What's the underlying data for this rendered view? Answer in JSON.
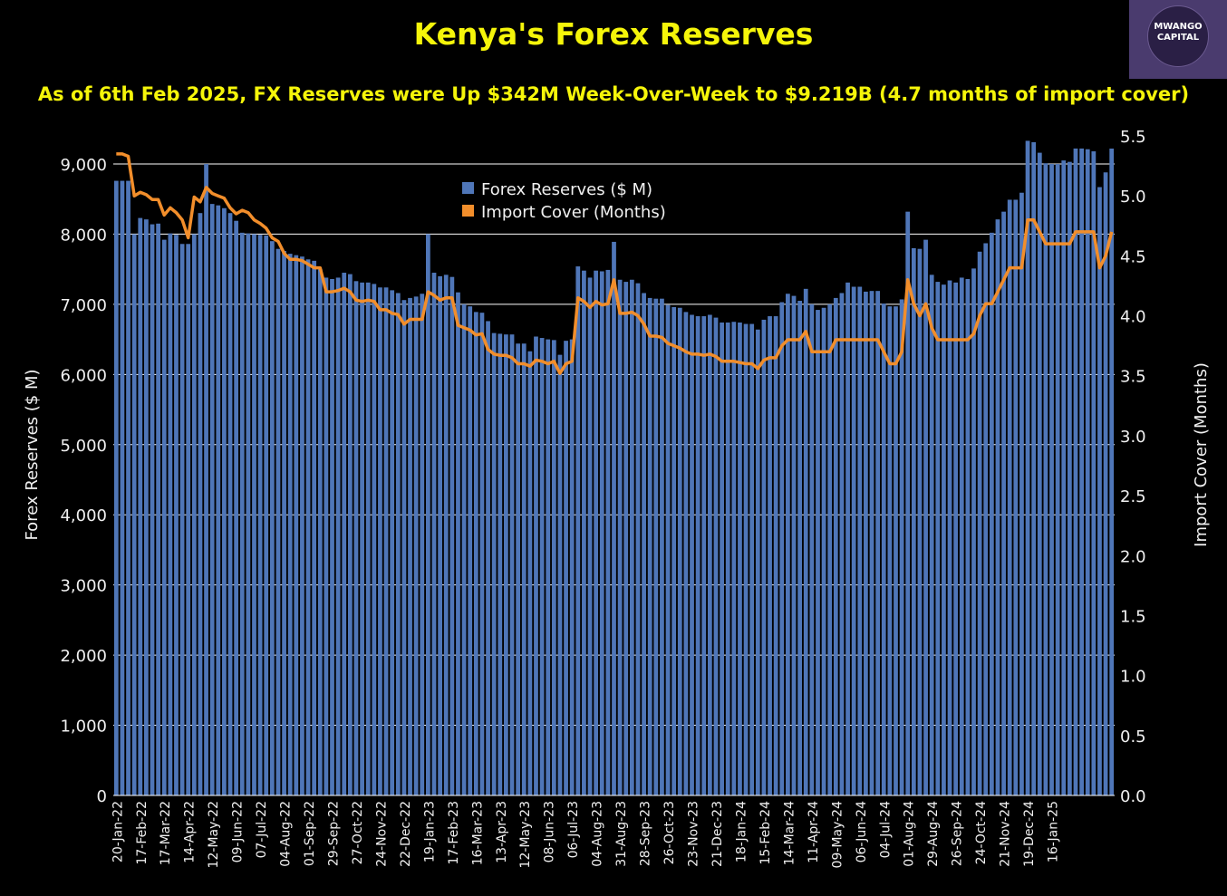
{
  "brand": {
    "line1": "MWANGO",
    "line2": "CAPITAL"
  },
  "chart_data": {
    "type": "bar+line",
    "title": "Kenya's Forex Reserves",
    "subtitle": "As of 6th Feb 2025, FX Reserves were Up $342M Week-Over-Week to $9.219B (4.7 months of import cover)",
    "ylabel_left": "Forex Reserves ($ M)",
    "ylabel_right": "Import Cover (Months)",
    "ylim_left": [
      0,
      9400
    ],
    "ylim_right": [
      0,
      5.5
    ],
    "yticks_left": [
      "0",
      "1,000",
      "2,000",
      "3,000",
      "4,000",
      "5,000",
      "6,000",
      "7,000",
      "8,000",
      "9,000"
    ],
    "yticks_right": [
      "0.0",
      "0.5",
      "1.0",
      "1.5",
      "2.0",
      "2.5",
      "3.0",
      "3.5",
      "4.0",
      "4.5",
      "5.0",
      "5.5"
    ],
    "yticks_left_values": [
      0,
      1000,
      2000,
      3000,
      4000,
      5000,
      6000,
      7000,
      8000,
      9000
    ],
    "yticks_right_values": [
      0,
      0.5,
      1.0,
      1.5,
      2.0,
      2.5,
      3.0,
      3.5,
      4.0,
      4.5,
      5.0,
      5.5
    ],
    "x_tick_labels": [
      "20-Jan-22",
      "17-Feb-22",
      "17-Mar-22",
      "14-Apr-22",
      "12-May-22",
      "09-Jun-22",
      "07-Jul-22",
      "04-Aug-22",
      "01-Sep-22",
      "29-Sep-22",
      "27-Oct-22",
      "24-Nov-22",
      "22-Dec-22",
      "19-Jan-23",
      "17-Feb-23",
      "16-Mar-23",
      "13-Apr-23",
      "12-May-23",
      "08-Jun-23",
      "06-Jul-23",
      "04-Aug-23",
      "31-Aug-23",
      "28-Sep-23",
      "26-Oct-23",
      "23-Nov-23",
      "21-Dec-23",
      "18-Jan-24",
      "15-Feb-24",
      "14-Mar-24",
      "11-Apr-24",
      "09-May-24",
      "06-Jun-24",
      "04-Jul-24",
      "01-Aug-24",
      "29-Aug-24",
      "26-Sep-24",
      "24-Oct-24",
      "21-Nov-24",
      "19-Dec-24",
      "16-Jan-25"
    ],
    "x_tick_every": 4,
    "legend": [
      "Forex Reserves ($ M)",
      "Import Cover (Months)"
    ],
    "colors": {
      "bars": "#4f76b8",
      "line": "#f28e2b",
      "grid": "#ffffff"
    },
    "series": [
      {
        "name": "Forex Reserves ($ M)",
        "axis": "left",
        "values": [
          8760,
          8760,
          8760,
          8000,
          8230,
          8210,
          8140,
          8150,
          7920,
          8010,
          7990,
          7860,
          7860,
          8000,
          8300,
          9000,
          8430,
          8410,
          8370,
          8300,
          8190,
          8020,
          8010,
          8000,
          7990,
          7980,
          7900,
          7790,
          7760,
          7720,
          7700,
          7680,
          7640,
          7620,
          7500,
          7380,
          7360,
          7380,
          7450,
          7430,
          7330,
          7310,
          7310,
          7290,
          7240,
          7240,
          7200,
          7160,
          7060,
          7090,
          7110,
          7150,
          8000,
          7450,
          7400,
          7420,
          7390,
          7170,
          7000,
          6970,
          6890,
          6880,
          6760,
          6590,
          6580,
          6570,
          6570,
          6440,
          6440,
          6330,
          6540,
          6520,
          6500,
          6490,
          6280,
          6480,
          6500,
          7540,
          7480,
          7380,
          7480,
          7470,
          7490,
          7890,
          7350,
          7320,
          7350,
          7300,
          7160,
          7090,
          7080,
          7080,
          6990,
          6960,
          6950,
          6890,
          6850,
          6830,
          6830,
          6850,
          6810,
          6740,
          6740,
          6750,
          6740,
          6720,
          6720,
          6640,
          6780,
          6830,
          6830,
          7030,
          7150,
          7120,
          7050,
          7220,
          7000,
          6920,
          6950,
          7000,
          7090,
          7160,
          7310,
          7250,
          7250,
          7180,
          7190,
          7190,
          7010,
          6970,
          6970,
          7070,
          8320,
          7800,
          7790,
          7920,
          7420,
          7320,
          7280,
          7340,
          7310,
          7380,
          7360,
          7510,
          7750,
          7870,
          8020,
          8210,
          8320,
          8490,
          8490,
          8590,
          9330,
          9310,
          9160,
          9010,
          9000,
          9000,
          9050,
          9030,
          9220,
          9220,
          9210,
          9180,
          8670,
          8880,
          9219
        ]
      },
      {
        "name": "Import Cover (Months)",
        "axis": "right",
        "values": [
          5.35,
          5.35,
          5.33,
          5.0,
          5.03,
          5.01,
          4.97,
          4.97,
          4.84,
          4.9,
          4.86,
          4.8,
          4.65,
          4.99,
          4.95,
          5.07,
          5.02,
          5.0,
          4.98,
          4.9,
          4.85,
          4.88,
          4.86,
          4.8,
          4.77,
          4.73,
          4.65,
          4.62,
          4.52,
          4.47,
          4.47,
          4.46,
          4.43,
          4.4,
          4.4,
          4.2,
          4.2,
          4.21,
          4.23,
          4.2,
          4.13,
          4.12,
          4.13,
          4.12,
          4.05,
          4.05,
          4.02,
          4.01,
          3.93,
          3.97,
          3.97,
          3.97,
          4.2,
          4.17,
          4.13,
          4.15,
          4.15,
          3.92,
          3.9,
          3.88,
          3.84,
          3.85,
          3.72,
          3.68,
          3.67,
          3.67,
          3.65,
          3.6,
          3.6,
          3.58,
          3.63,
          3.62,
          3.6,
          3.62,
          3.52,
          3.6,
          3.62,
          4.15,
          4.12,
          4.07,
          4.12,
          4.09,
          4.1,
          4.3,
          4.02,
          4.02,
          4.03,
          4.0,
          3.93,
          3.83,
          3.83,
          3.82,
          3.77,
          3.75,
          3.73,
          3.7,
          3.68,
          3.68,
          3.67,
          3.68,
          3.66,
          3.62,
          3.62,
          3.62,
          3.61,
          3.6,
          3.6,
          3.56,
          3.63,
          3.65,
          3.65,
          3.75,
          3.8,
          3.8,
          3.8,
          3.87,
          3.7,
          3.7,
          3.7,
          3.7,
          3.8,
          3.8,
          3.8,
          3.8,
          3.8,
          3.8,
          3.8,
          3.8,
          3.7,
          3.6,
          3.6,
          3.7,
          4.3,
          4.1,
          4.0,
          4.1,
          3.9,
          3.8,
          3.8,
          3.8,
          3.8,
          3.8,
          3.8,
          3.85,
          4.0,
          4.1,
          4.1,
          4.2,
          4.3,
          4.4,
          4.4,
          4.4,
          4.8,
          4.8,
          4.7,
          4.6,
          4.6,
          4.6,
          4.6,
          4.6,
          4.7,
          4.7,
          4.7,
          4.7,
          4.4,
          4.5,
          4.7
        ]
      }
    ]
  }
}
